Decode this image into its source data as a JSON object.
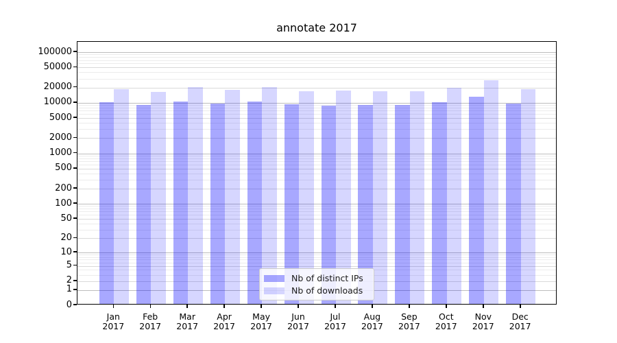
{
  "page": {
    "background": "#ffffff"
  },
  "chart_data": {
    "type": "bar",
    "title": "annotate 2017",
    "categories": [
      {
        "month": "Jan",
        "year": "2017"
      },
      {
        "month": "Feb",
        "year": "2017"
      },
      {
        "month": "Mar",
        "year": "2017"
      },
      {
        "month": "Apr",
        "year": "2017"
      },
      {
        "month": "May",
        "year": "2017"
      },
      {
        "month": "Jun",
        "year": "2017"
      },
      {
        "month": "Jul",
        "year": "2017"
      },
      {
        "month": "Aug",
        "year": "2017"
      },
      {
        "month": "Sep",
        "year": "2017"
      },
      {
        "month": "Oct",
        "year": "2017"
      },
      {
        "month": "Nov",
        "year": "2017"
      },
      {
        "month": "Dec",
        "year": "2017"
      }
    ],
    "series": [
      {
        "name": "Nb of distinct IPs",
        "color": "rgba(0,0,255,0.34)",
        "values": [
          10400,
          9200,
          10700,
          9800,
          10500,
          9500,
          8900,
          9000,
          9100,
          10400,
          13100,
          9800
        ]
      },
      {
        "name": "Nb of downloads",
        "color": "rgba(0,0,255,0.16)",
        "values": [
          18400,
          16600,
          20500,
          18100,
          20700,
          17200,
          17700,
          16700,
          17000,
          19600,
          28000,
          18800
        ]
      }
    ],
    "yticks": [
      100000,
      50000,
      20000,
      10000,
      5000,
      2000,
      1000,
      500,
      200,
      100,
      50,
      20,
      10,
      5,
      2,
      1,
      0
    ],
    "yscale": "log10(v+1)",
    "ylim": [
      0,
      160000
    ],
    "grid": {
      "major": true,
      "minor": true
    },
    "legend": {
      "position": "lower center"
    },
    "colors": {
      "decade_gridline": "#bdbdbd",
      "tick_gridline": "#d9d9d9",
      "minor_gridline": "#ececec",
      "axis": "#000000"
    }
  }
}
